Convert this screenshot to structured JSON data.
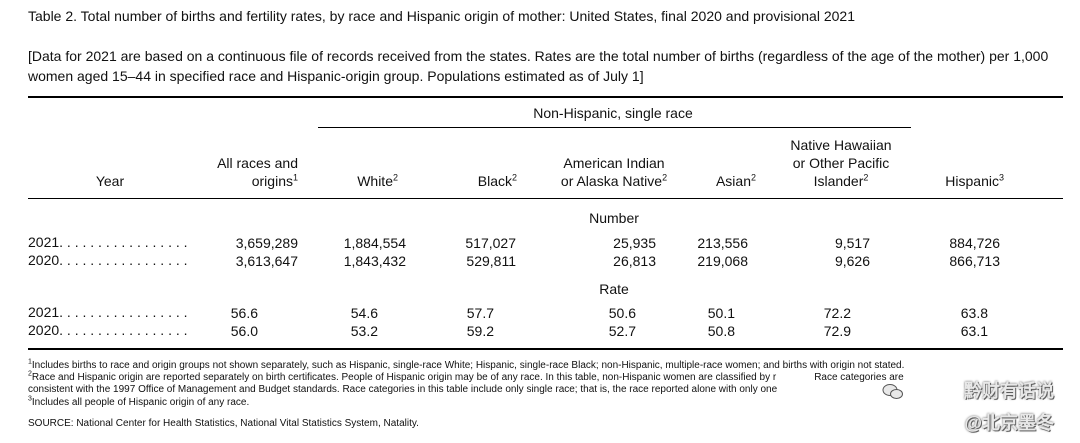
{
  "title": "Table 2. Total number of births and fertility rates, by race and Hispanic origin of mother: United States, final 2020 and provisional 2021",
  "headnote": "[Data for 2021 are based on a continuous file of records received from the states. Rates are the total number of births (regardless of the age of the mother) per 1,000 women aged 15–44 in specified race and Hispanic-origin group. Populations estimated as of July 1]",
  "spanner": "Non-Hispanic, single race",
  "columns": {
    "year": "Year",
    "all_a": "All races and",
    "all_b": "origins",
    "all_sup": "1",
    "white": "White",
    "white_sup": "2",
    "black": "Black",
    "black_sup": "2",
    "aian_a": "American Indian",
    "aian_b": "or Alaska Native",
    "aian_sup": "2",
    "asian": "Asian",
    "asian_sup": "2",
    "nhopi_a": "Native Hawaiian",
    "nhopi_b": "or Other Pacific",
    "nhopi_c": "Islander",
    "nhopi_sup": "2",
    "hispanic": "Hispanic",
    "hispanic_sup": "3"
  },
  "sections": {
    "number": "Number",
    "rate": "Rate"
  },
  "rows": {
    "number_2021": {
      "year": "2021",
      "all": "3,659,289",
      "white": "1,884,554",
      "black": "517,027",
      "aian": "25,935",
      "asian": "213,556",
      "nhopi": "9,517",
      "hispanic": "884,726"
    },
    "number_2020": {
      "year": "2020",
      "all": "3,613,647",
      "white": "1,843,432",
      "black": "529,811",
      "aian": "26,813",
      "asian": "219,068",
      "nhopi": "9,626",
      "hispanic": "866,713"
    },
    "rate_2021": {
      "year": "2021",
      "all": "56.6",
      "white": "54.6",
      "black": "57.7",
      "aian": "50.6",
      "asian": "50.1",
      "nhopi": "72.2",
      "hispanic": "63.8"
    },
    "rate_2020": {
      "year": "2020",
      "all": "56.0",
      "white": "53.2",
      "black": "59.2",
      "aian": "52.7",
      "asian": "50.8",
      "nhopi": "72.9",
      "hispanic": "63.1"
    }
  },
  "dots": ". . . . . . . . . . . . . . . . .",
  "footnotes": {
    "f1_sup": "1",
    "f1": "Includes births to race and origin groups not shown separately, such as Hispanic, single-race White; Hispanic, single-race Black; non-Hispanic, multiple-race women; and births with origin not stated.",
    "f2_sup": "2",
    "f2a": "Race and Hispanic origin are reported separately on birth certificates. People of Hispanic origin may be of any race. In this table, non-Hispanic women are classified by r",
    "f2b": "Race categories are",
    "f2c": "consistent with the 1997 Office of Management and Budget standards. Race categories in this table include only single race; that is, the race reported alone with only one",
    "f3_sup": "3",
    "f3": "Includes all people of Hispanic origin of any race."
  },
  "source": "SOURCE: National Center for Health Statistics, National Vital Statistics System, Natality.",
  "watermark": {
    "line1": "黔财有话说",
    "line2": "@北京墨冬"
  }
}
